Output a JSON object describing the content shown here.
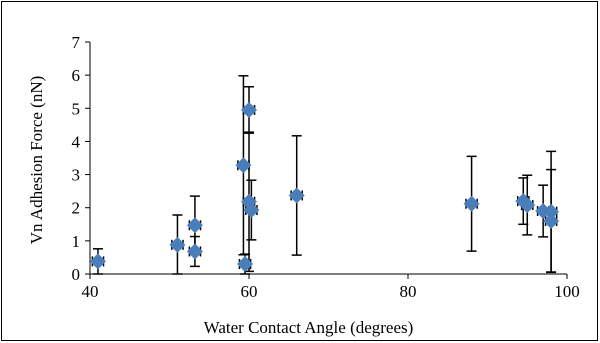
{
  "chart_data": {
    "type": "scatter",
    "title": "",
    "xlabel": "Water Contact Angle (degrees)",
    "ylabel": "Vn Adhesion Force (nN)",
    "xlim": [
      40,
      100
    ],
    "ylim": [
      0,
      7
    ],
    "x_ticks": [
      40,
      60,
      80,
      100
    ],
    "y_ticks": [
      0,
      1,
      2,
      3,
      4,
      5,
      6,
      7
    ],
    "grid": false,
    "legend": "none",
    "marker_color": "#4a7ebb",
    "error_bar_color": "#000000",
    "series": [
      {
        "points": [
          {
            "x": 41,
            "y": 0.38,
            "xerr": 0.7,
            "yerr": 0.38
          },
          {
            "x": 51,
            "y": 0.88,
            "xerr": 0.7,
            "yerr": 0.9
          },
          {
            "x": 53.2,
            "y": 1.47,
            "xerr": 0.7,
            "yerr": 0.88
          },
          {
            "x": 53.2,
            "y": 0.68,
            "xerr": 0.7,
            "yerr": 0.45
          },
          {
            "x": 59.3,
            "y": 3.28,
            "xerr": 0.7,
            "yerr": 2.7
          },
          {
            "x": 59.5,
            "y": 0.3,
            "xerr": 0.7,
            "yerr": 0.3
          },
          {
            "x": 60.0,
            "y": 4.95,
            "xerr": 0.7,
            "yerr": 0.7
          },
          {
            "x": 60.0,
            "y": 2.18,
            "xerr": 0.7,
            "yerr": 2.1
          },
          {
            "x": 60.3,
            "y": 1.93,
            "xerr": 0.7,
            "yerr": 0.9
          },
          {
            "x": 66,
            "y": 2.37,
            "xerr": 0.7,
            "yerr": 1.8
          },
          {
            "x": 88,
            "y": 2.12,
            "xerr": 0.7,
            "yerr": 1.43
          },
          {
            "x": 94.5,
            "y": 2.2,
            "xerr": 0.7,
            "yerr": 0.7
          },
          {
            "x": 95.0,
            "y": 2.08,
            "xerr": 0.7,
            "yerr": 0.9
          },
          {
            "x": 97,
            "y": 1.9,
            "xerr": 0.7,
            "yerr": 0.78
          },
          {
            "x": 98.0,
            "y": 1.88,
            "xerr": 0.7,
            "yerr": 1.82
          },
          {
            "x": 98.0,
            "y": 1.6,
            "xerr": 0.7,
            "yerr": 1.55
          }
        ]
      }
    ]
  }
}
